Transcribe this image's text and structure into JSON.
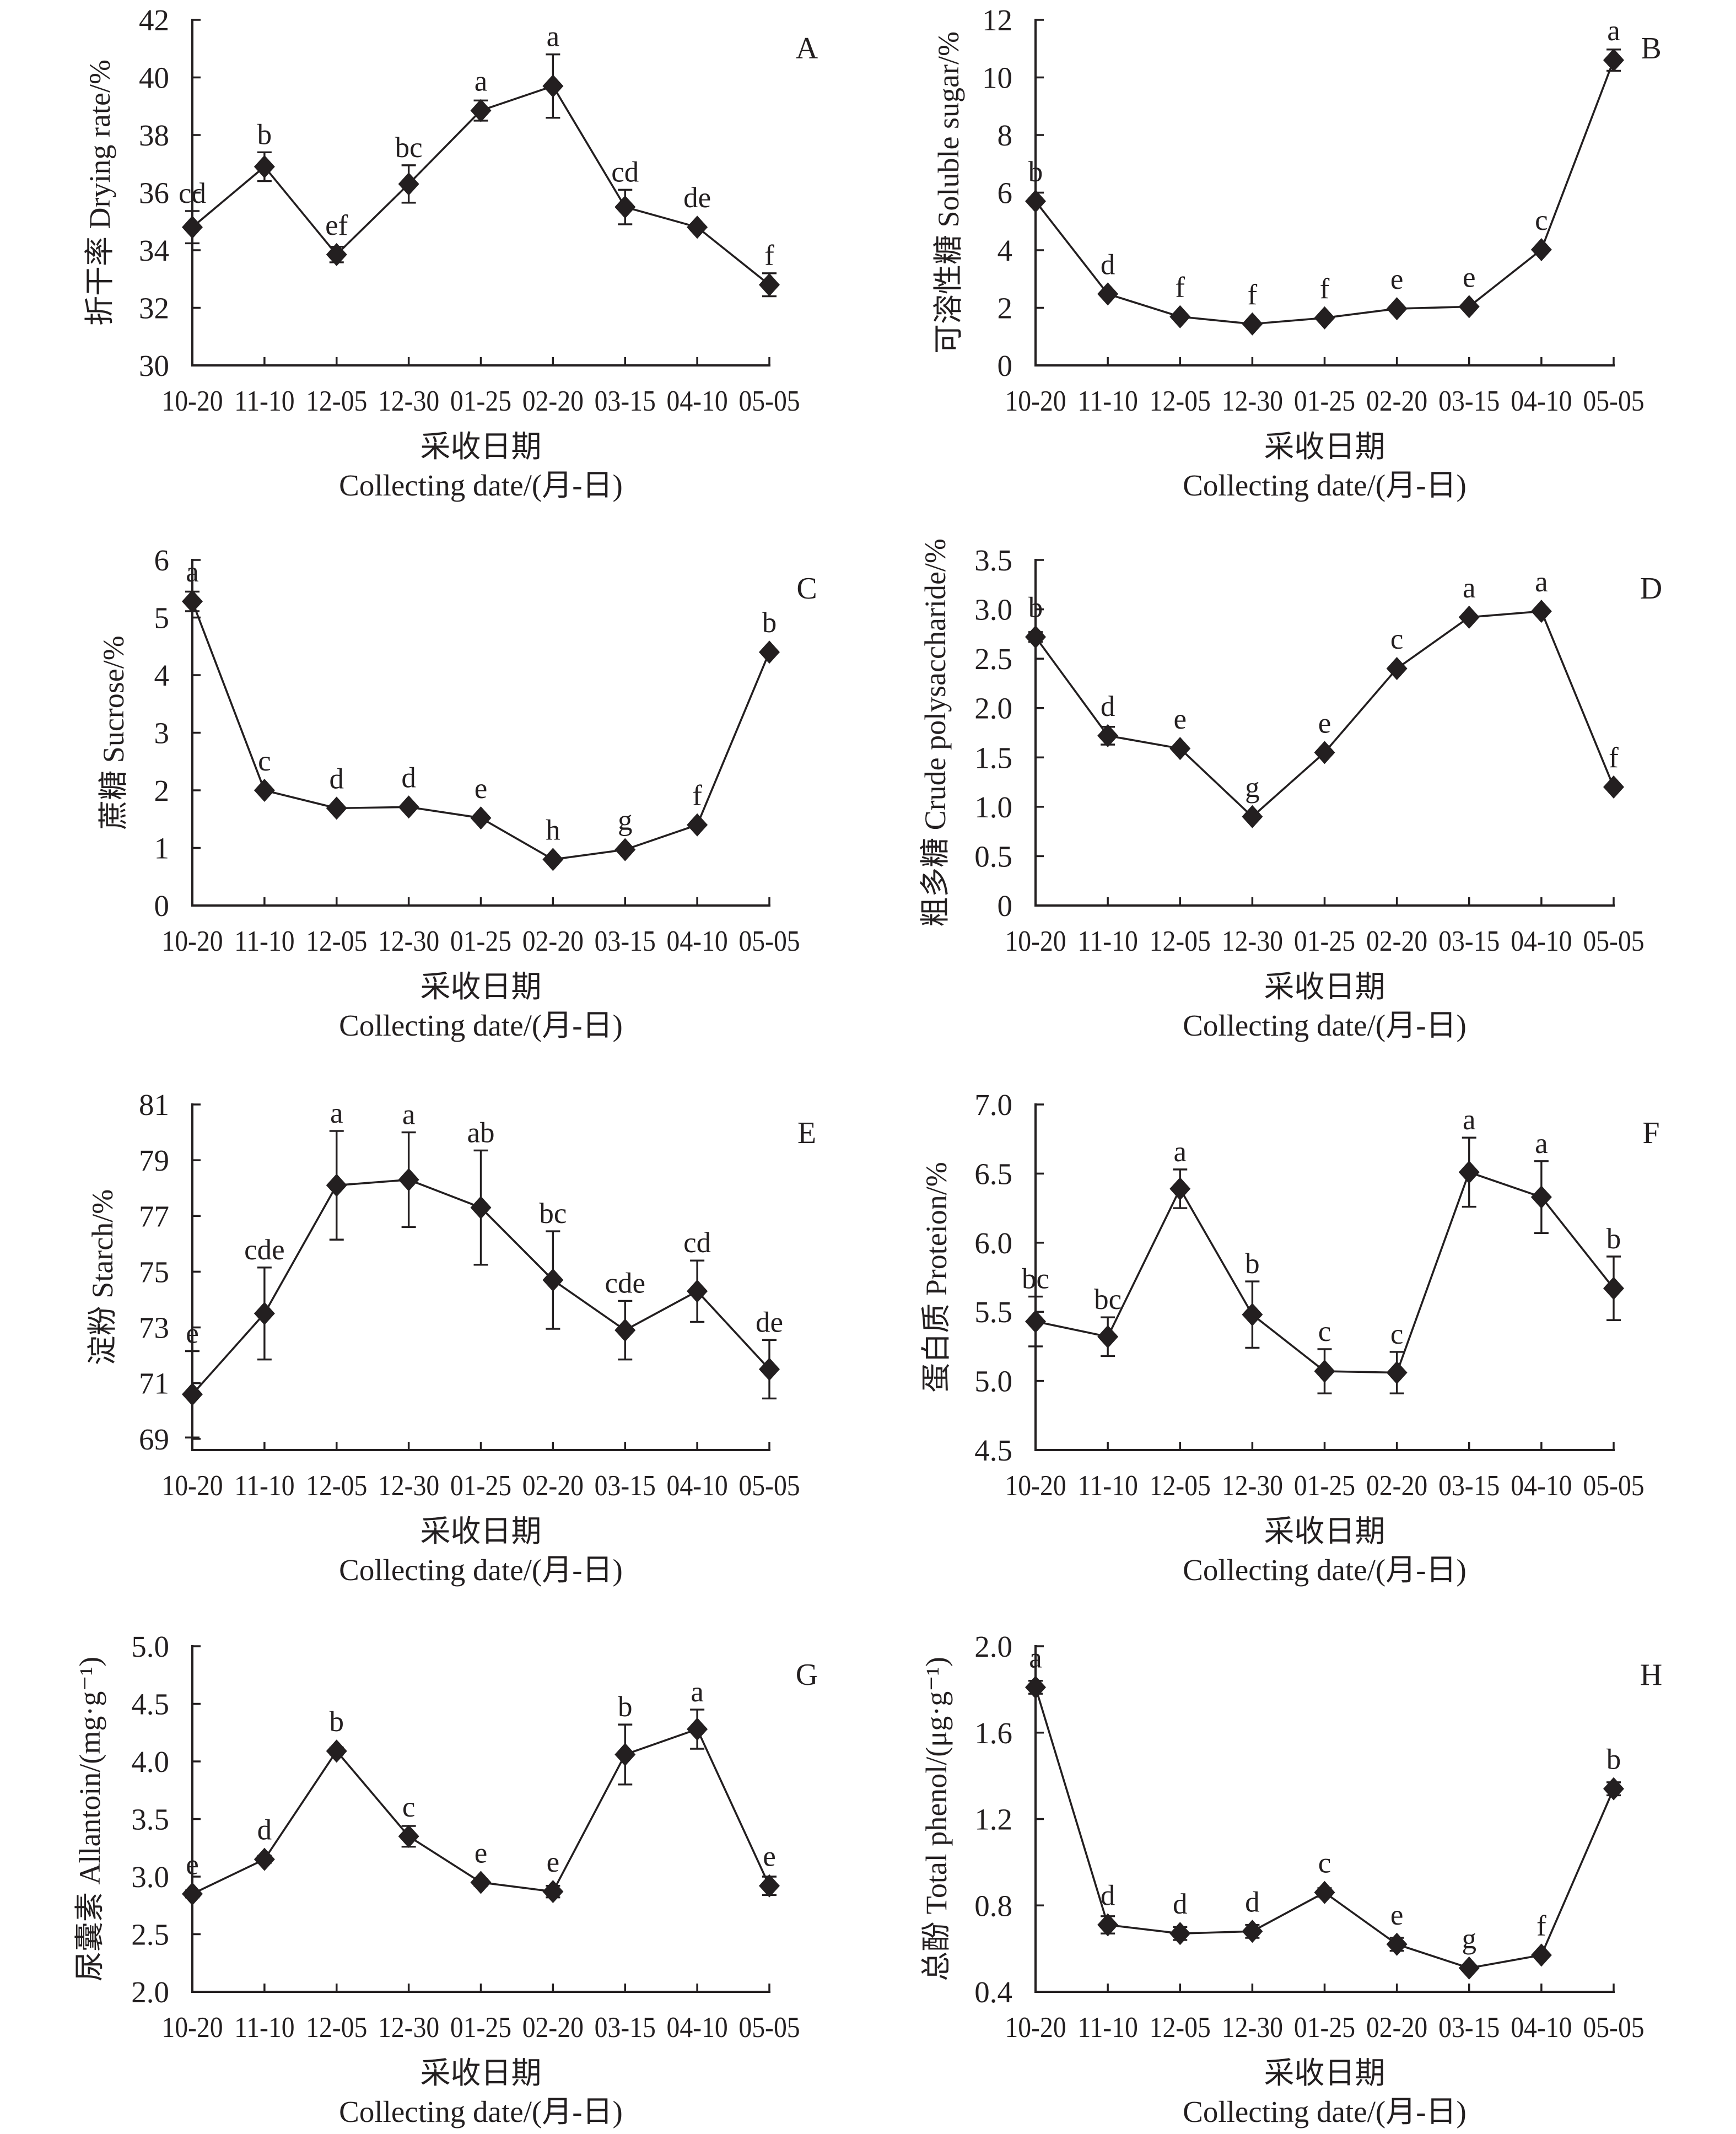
{
  "chart_data": [
    {
      "panel_label": "A",
      "type": "line",
      "title": "",
      "ylabel": "折干率 Drying rate/%",
      "xlabel": [
        "采收日期",
        "Collecting date/(月-日)"
      ],
      "categories": [
        "10-20",
        "11-10",
        "12-05",
        "12-30",
        "01-25",
        "02-20",
        "03-15",
        "04-10",
        "05-05"
      ],
      "ylim": [
        30,
        42
      ],
      "yticks": [
        30,
        32,
        34,
        36,
        38,
        40,
        42
      ],
      "ytick_labels": [
        "30",
        "32",
        "34",
        "36",
        "38",
        "40",
        "42"
      ],
      "grid": false,
      "legend": "none",
      "series": [
        {
          "name": "Drying rate",
          "marker": "diamond",
          "color": "#231f20",
          "values": [
            34.8,
            36.9,
            33.85,
            36.3,
            38.85,
            39.7,
            35.5,
            34.8,
            32.8
          ],
          "errors": [
            0.56,
            0.5,
            0.27,
            0.65,
            0.35,
            1.1,
            0.6,
            0.1,
            0.4
          ],
          "significance": [
            "cd",
            "b",
            "ef",
            "bc",
            "a",
            "a",
            "cd",
            "de",
            "f"
          ]
        }
      ]
    },
    {
      "panel_label": "B",
      "type": "line",
      "title": "",
      "ylabel": "可溶性糖 Soluble sugar/%",
      "xlabel": [
        "采收日期",
        "Collecting date/(月-日)"
      ],
      "categories": [
        "10-20",
        "11-10",
        "12-05",
        "12-30",
        "01-25",
        "02-20",
        "03-15",
        "04-10",
        "05-05"
      ],
      "ylim": [
        0,
        12
      ],
      "yticks": [
        0,
        2,
        4,
        6,
        8,
        10,
        12
      ],
      "ytick_labels": [
        "0",
        "2",
        "4",
        "6",
        "8",
        "10",
        "12"
      ],
      "grid": false,
      "legend": "none",
      "series": [
        {
          "name": "Soluble sugar",
          "marker": "diamond",
          "color": "#231f20",
          "values": [
            5.7,
            2.48,
            1.69,
            1.44,
            1.65,
            1.97,
            2.04,
            4.02,
            10.6
          ],
          "errors": [
            0.1,
            0.05,
            0.05,
            0.05,
            0.05,
            0.05,
            0.05,
            0.05,
            0.37
          ],
          "significance": [
            "b",
            "d",
            "f",
            "f",
            "f",
            "e",
            "e",
            "c",
            "a"
          ]
        }
      ]
    },
    {
      "panel_label": "C",
      "type": "line",
      "title": "",
      "ylabel": "蔗糖 Sucrose/%",
      "xlabel": [
        "采收日期",
        "Collecting date/(月-日)"
      ],
      "categories": [
        "10-20",
        "11-10",
        "12-05",
        "12-30",
        "01-25",
        "02-20",
        "03-15",
        "04-10",
        "05-05"
      ],
      "ylim": [
        0,
        6
      ],
      "yticks": [
        0,
        1,
        2,
        3,
        4,
        5,
        6
      ],
      "ytick_labels": [
        "0",
        "1",
        "2",
        "3",
        "4",
        "5",
        "6"
      ],
      "grid": false,
      "legend": "none",
      "series": [
        {
          "name": "Sucrose",
          "marker": "diamond",
          "color": "#231f20",
          "values": [
            5.28,
            2.0,
            1.69,
            1.71,
            1.52,
            0.8,
            0.97,
            1.4,
            4.4
          ],
          "errors": [
            0.17,
            0.03,
            0.03,
            0.03,
            0.03,
            0.03,
            0.03,
            0.03,
            0.03
          ],
          "significance": [
            "a",
            "c",
            "d",
            "d",
            "e",
            "h",
            "g",
            "f",
            "b"
          ]
        }
      ]
    },
    {
      "panel_label": "D",
      "type": "line",
      "title": "",
      "ylabel": "粗多糖 Crude polysaccharide/%",
      "xlabel": [
        "采收日期",
        "Collecting date/(月-日)"
      ],
      "categories": [
        "10-20",
        "11-10",
        "12-05",
        "12-30",
        "01-25",
        "02-20",
        "03-15",
        "04-10",
        "05-05"
      ],
      "ylim": [
        0,
        3.5
      ],
      "yticks": [
        0,
        0.5,
        1.0,
        1.5,
        2.0,
        2.5,
        3.0,
        3.5
      ],
      "ytick_labels": [
        "0",
        "0.5",
        "1.0",
        "1.5",
        "2.0",
        "2.5",
        "3.0",
        "3.5"
      ],
      "grid": false,
      "legend": "none",
      "series": [
        {
          "name": "Crude polysaccharide",
          "marker": "diamond",
          "color": "#231f20",
          "values": [
            2.72,
            1.72,
            1.59,
            0.9,
            1.55,
            2.4,
            2.92,
            2.98,
            1.2
          ],
          "errors": [
            0.05,
            0.09,
            0.02,
            0.02,
            0.02,
            0.02,
            0.02,
            0.02,
            0.02
          ],
          "significance": [
            "b",
            "d",
            "e",
            "g",
            "e",
            "c",
            "a",
            "a",
            "f"
          ]
        }
      ]
    },
    {
      "panel_label": "E",
      "type": "line",
      "title": "",
      "ylabel": "淀粉 Starch/%",
      "xlabel": [
        "采收日期",
        "Collecting date/(月-日)"
      ],
      "categories": [
        "10-20",
        "11-10",
        "12-05",
        "12-30",
        "01-25",
        "02-20",
        "03-15",
        "04-10",
        "05-05"
      ],
      "ylim": [
        68.6,
        81
      ],
      "yticks": [
        69,
        71,
        73,
        75,
        77,
        79,
        81
      ],
      "ytick_labels": [
        "69",
        "71",
        "73",
        "75",
        "77",
        "79",
        "81"
      ],
      "grid": false,
      "legend": "none",
      "series": [
        {
          "name": "Starch",
          "marker": "diamond",
          "color": "#231f20",
          "values": [
            70.6,
            73.5,
            78.1,
            78.3,
            77.3,
            74.7,
            72.9,
            74.3,
            71.5
          ],
          "errors": [
            1.55,
            1.65,
            1.95,
            1.7,
            2.05,
            1.75,
            1.05,
            1.1,
            1.05
          ],
          "significance": [
            "e",
            "cde",
            "a",
            "a",
            "ab",
            "bc",
            "cde",
            "cd",
            "de"
          ]
        }
      ]
    },
    {
      "panel_label": "F",
      "type": "line",
      "title": "",
      "ylabel": "蛋白质 Proteion/%",
      "xlabel": [
        "采收日期",
        "Collecting date/(月-日)"
      ],
      "categories": [
        "10-20",
        "11-10",
        "12-05",
        "12-30",
        "01-25",
        "02-20",
        "03-15",
        "04-10",
        "05-05"
      ],
      "ylim": [
        4.5,
        7.0
      ],
      "yticks": [
        4.5,
        5.0,
        5.5,
        6.0,
        6.5,
        7.0
      ],
      "ytick_labels": [
        "4.5",
        "5.0",
        "5.5",
        "6.0",
        "6.5",
        "7.0"
      ],
      "grid": false,
      "legend": "none",
      "series": [
        {
          "name": "Protein",
          "marker": "diamond",
          "color": "#231f20",
          "values": [
            5.43,
            5.32,
            6.39,
            5.48,
            5.07,
            5.06,
            6.51,
            6.33,
            5.67
          ],
          "errors": [
            0.18,
            0.14,
            0.14,
            0.24,
            0.16,
            0.15,
            0.25,
            0.26,
            0.23
          ],
          "significance": [
            "bc",
            "bc",
            "a",
            "b",
            "c",
            "c",
            "a",
            "a",
            "b"
          ]
        }
      ]
    },
    {
      "panel_label": "G",
      "type": "line",
      "title": "",
      "ylabel": "尿囊素 Allantoin/(mg·g⁻¹)",
      "xlabel": [
        "采收日期",
        "Collecting date/(月-日)"
      ],
      "categories": [
        "10-20",
        "11-10",
        "12-05",
        "12-30",
        "01-25",
        "02-20",
        "03-15",
        "04-10",
        "05-05"
      ],
      "ylim": [
        2.0,
        5.0
      ],
      "yticks": [
        2.0,
        2.5,
        3.0,
        3.5,
        4.0,
        4.5,
        5.0
      ],
      "ytick_labels": [
        "2.0",
        "2.5",
        "3.0",
        "3.5",
        "4.0",
        "4.5",
        "5.0"
      ],
      "grid": false,
      "legend": "none",
      "series": [
        {
          "name": "Allantoin",
          "marker": "diamond",
          "color": "#231f20",
          "values": [
            2.85,
            3.15,
            4.09,
            3.35,
            2.95,
            2.87,
            4.06,
            4.28,
            2.92
          ],
          "errors": [
            0.03,
            0.03,
            0.03,
            0.09,
            0.03,
            0.05,
            0.26,
            0.17,
            0.08
          ],
          "significance": [
            "e",
            "d",
            "b",
            "c",
            "e",
            "e",
            "b",
            "a",
            "e"
          ]
        }
      ]
    },
    {
      "panel_label": "H",
      "type": "line",
      "title": "",
      "ylabel": "总酚 Total phenol/(μg·g⁻¹)",
      "xlabel": [
        "采收日期",
        "Collecting date/(月-日)"
      ],
      "categories": [
        "10-20",
        "11-10",
        "12-05",
        "12-30",
        "01-25",
        "02-20",
        "03-15",
        "04-10",
        "05-05"
      ],
      "ylim": [
        0.4,
        2.0
      ],
      "yticks": [
        0.4,
        0.8,
        1.2,
        1.6,
        2.0
      ],
      "ytick_labels": [
        "0.4",
        "0.8",
        "1.2",
        "1.6",
        "2.0"
      ],
      "grid": false,
      "legend": "none",
      "series": [
        {
          "name": "Total phenol",
          "marker": "diamond",
          "color": "#231f20",
          "values": [
            1.81,
            0.71,
            0.67,
            0.68,
            0.86,
            0.62,
            0.51,
            0.57,
            1.34
          ],
          "errors": [
            0.03,
            0.04,
            0.03,
            0.03,
            0.02,
            0.03,
            0.01,
            0.01,
            0.03
          ],
          "significance": [
            "a",
            "d",
            "d",
            "d",
            "c",
            "e",
            "g",
            "f",
            "b"
          ]
        }
      ]
    }
  ]
}
